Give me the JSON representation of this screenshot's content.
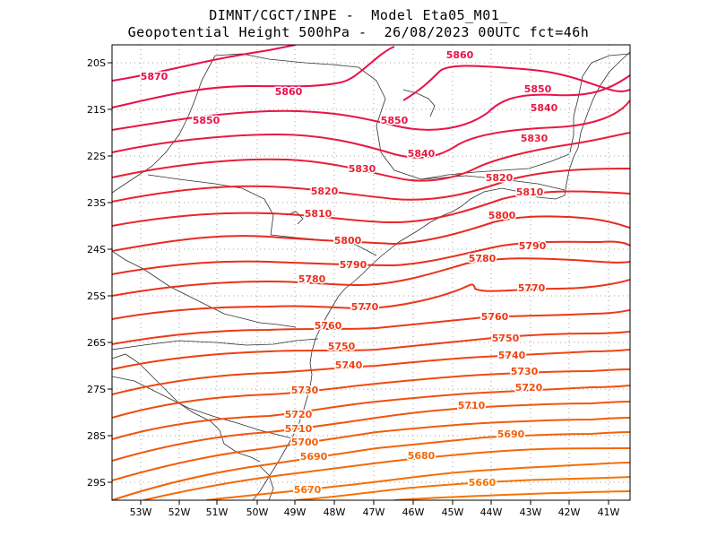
{
  "header": {
    "line1": "DIMNT/CGCT/INPE -  Model Eta05_M01_",
    "line2": "Geopotential Height 500hPa -  26/08/2023 00UTC fct=46h"
  },
  "axes": {
    "x_ticks": [
      "53W",
      "52W",
      "51W",
      "50W",
      "49W",
      "48W",
      "47W",
      "46W",
      "45W",
      "44W",
      "43W",
      "42W",
      "41W"
    ],
    "y_ticks": [
      "20S",
      "21S",
      "22S",
      "23S",
      "24S",
      "25S",
      "26S",
      "27S",
      "28S",
      "29S"
    ]
  },
  "contours": [
    {
      "value": 5870,
      "label": "5870",
      "color": "#e8104a"
    },
    {
      "value": 5860,
      "label": "5860",
      "color": "#e8104a"
    },
    {
      "value": 5850,
      "label": "5850",
      "color": "#e8154a"
    },
    {
      "value": 5840,
      "label": "5840",
      "color": "#e81a40"
    },
    {
      "value": 5830,
      "label": "5830",
      "color": "#e81e38"
    },
    {
      "value": 5820,
      "label": "5820",
      "color": "#e82232"
    },
    {
      "value": 5810,
      "label": "5810",
      "color": "#e8262a"
    },
    {
      "value": 5800,
      "label": "5800",
      "color": "#e82a22"
    },
    {
      "value": 5790,
      "label": "5790",
      "color": "#ea2e1e"
    },
    {
      "value": 5780,
      "label": "5780",
      "color": "#ea321a"
    },
    {
      "value": 5770,
      "label": "5770",
      "color": "#eb3618"
    },
    {
      "value": 5760,
      "label": "5760",
      "color": "#ec3a16"
    },
    {
      "value": 5750,
      "label": "5750",
      "color": "#ed3e14"
    },
    {
      "value": 5740,
      "label": "5740",
      "color": "#ee4412"
    },
    {
      "value": 5730,
      "label": "5730",
      "color": "#ef4a10"
    },
    {
      "value": 5720,
      "label": "5720",
      "color": "#f0500e"
    },
    {
      "value": 5710,
      "label": "5710",
      "color": "#f1560c"
    },
    {
      "value": 5700,
      "label": "5700",
      "color": "#f25c0a"
    },
    {
      "value": 5690,
      "label": "5690",
      "color": "#f36208"
    },
    {
      "value": 5680,
      "label": "5680",
      "color": "#f46806"
    },
    {
      "value": 5670,
      "label": "5670",
      "color": "#f56e04"
    },
    {
      "value": 5660,
      "label": "5660",
      "color": "#f67402"
    }
  ],
  "colors": {
    "frame": "#000000",
    "grid": "#a0a0a0",
    "coast": "#303030"
  }
}
